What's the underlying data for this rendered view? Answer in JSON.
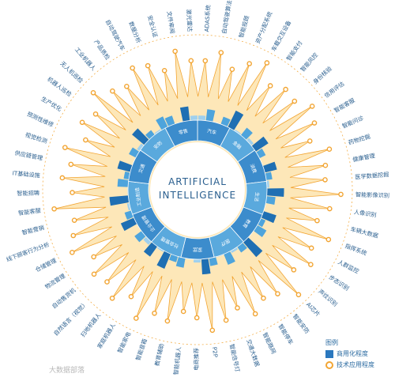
{
  "center_title": [
    "ARTIFICIAL",
    "INTELLIGENCE"
  ],
  "colors": {
    "blue_light": "#9fd0ee",
    "blue_mid": "#4ea4dc",
    "blue_dark": "#1f6fb3",
    "orange": "#f2a533",
    "orange_fill": "#fde7b8",
    "text": "#2a5f8f"
  },
  "sectors": [
    "汽车",
    "金融",
    "消费",
    "生活",
    "教育",
    "医疗",
    "家居",
    "社会管理",
    "企业管理",
    "工业制造",
    "交通",
    "安防",
    "零售"
  ],
  "outer_labels": [
    "ADAS系统",
    "自动驾驶算法",
    "智能投顾",
    "资产分配系统",
    "车载交互设备",
    "智能支付",
    "智能风控",
    "身份核验",
    "信用评估",
    "智能客服",
    "智能问诊",
    "药物挖掘",
    "健康管理",
    "医学数据挖掘",
    "智能影像识别",
    "人像识别",
    "车辆大数据",
    "指挥系统",
    "人群监控",
    "步态识别",
    "声纹识别",
    "AI芯片",
    "智能安防",
    "智能停车",
    "智能路网",
    "交通大数据",
    "智能信号灯",
    "P2P",
    "电商推荐",
    "智能机器人",
    "教育辅助",
    "智能音箱",
    "智能家电",
    "家庭机器人",
    "扫地机器人",
    "自然语言（视觉）",
    "自动售货机",
    "物流管理",
    "仓储管理",
    "线下顾客行为分析",
    "智能营销",
    "智能客服",
    "智能招聘",
    "IT基础设施",
    "供应链管理",
    "视觉检测",
    "预测性维修",
    "生产优化",
    "机器人巡检",
    "无人机巡检",
    "工业机器人",
    "产品质检",
    "自动驾驶汽车",
    "数据分析",
    "安全认证",
    "文件审阅",
    "激光雷达"
  ],
  "commercial_values": [
    0.55,
    0.7,
    0.4,
    0.62,
    0.85,
    0.48,
    0.66,
    0.52,
    0.78,
    0.6,
    0.45,
    0.72,
    0.58,
    0.5,
    0.82,
    0.64,
    0.44,
    0.74,
    0.56,
    0.68,
    0.4,
    0.88,
    0.6,
    0.5,
    0.7,
    0.46,
    0.62,
    0.78,
    0.52,
    0.42,
    0.66,
    0.58,
    0.8,
    0.48,
    0.72,
    0.54,
    0.64,
    0.44,
    0.76,
    0.6,
    0.5,
    0.86,
    0.46,
    0.68,
    0.56,
    0.74,
    0.42,
    0.62,
    0.52,
    0.8,
    0.58,
    0.48,
    0.7,
    0.64,
    0.45,
    0.76,
    0.55
  ],
  "tech_values": [
    0.62,
    0.8,
    0.55,
    0.75,
    0.9,
    0.58,
    0.7,
    0.66,
    0.85,
    0.72,
    0.5,
    0.78,
    0.64,
    0.6,
    0.88,
    0.7,
    0.52,
    0.82,
    0.6,
    0.74,
    0.55,
    0.92,
    0.66,
    0.58,
    0.76,
    0.54,
    0.7,
    0.84,
    0.6,
    0.5,
    0.72,
    0.65,
    0.86,
    0.56,
    0.78,
    0.62,
    0.7,
    0.52,
    0.82,
    0.68,
    0.58,
    0.9,
    0.55,
    0.74,
    0.62,
    0.8,
    0.5,
    0.7,
    0.58,
    0.86,
    0.64,
    0.55,
    0.78,
    0.7,
    0.52,
    0.82,
    0.62
  ],
  "legend": {
    "title": "图例",
    "commercial": "商用化程度",
    "tech": "技术应用程度"
  },
  "watermark": "大数据部落"
}
